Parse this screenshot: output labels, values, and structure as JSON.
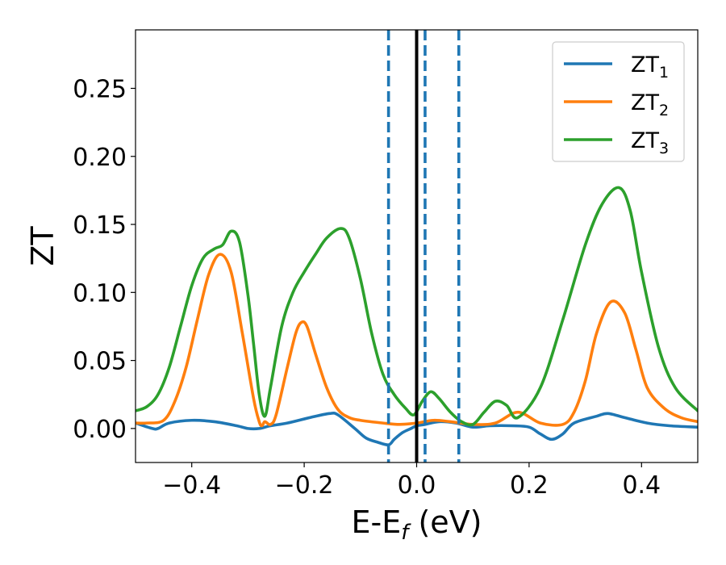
{
  "chart_data": {
    "type": "line",
    "xlabel_main": "E-E",
    "xlabel_sub": "f",
    "xlabel_unit": " (eV)",
    "ylabel": "ZT",
    "xlim": [
      -0.5,
      0.5
    ],
    "ylim": [
      -0.025,
      0.293
    ],
    "xticks": [
      -0.4,
      -0.2,
      0.0,
      0.2,
      0.4
    ],
    "xtick_labels": [
      "−0.4",
      "−0.2",
      "0.0",
      "0.2",
      "0.4"
    ],
    "yticks": [
      0.0,
      0.05,
      0.1,
      0.15,
      0.2,
      0.25
    ],
    "ytick_labels": [
      "0.00",
      "0.05",
      "0.10",
      "0.15",
      "0.20",
      "0.25"
    ],
    "legend_position": "top-right",
    "vlines": [
      {
        "x": 0.0,
        "color": "#000000",
        "style": "solid"
      },
      {
        "x": -0.05,
        "color": "#1f77b4",
        "style": "dashed"
      },
      {
        "x": 0.015,
        "color": "#1f77b4",
        "style": "dashed"
      },
      {
        "x": 0.075,
        "color": "#1f77b4",
        "style": "dashed"
      }
    ],
    "series": [
      {
        "name": "ZT",
        "sub": "1",
        "color": "#1f77b4",
        "x": [
          -0.5,
          -0.47,
          -0.46,
          -0.44,
          -0.4,
          -0.36,
          -0.32,
          -0.3,
          -0.28,
          -0.26,
          -0.23,
          -0.19,
          -0.155,
          -0.14,
          -0.11,
          -0.09,
          -0.07,
          -0.05,
          -0.04,
          -0.025,
          -0.01,
          0.0,
          0.015,
          0.04,
          0.07,
          0.1,
          0.13,
          0.17,
          0.2,
          0.22,
          0.24,
          0.26,
          0.28,
          0.32,
          0.34,
          0.37,
          0.41,
          0.45,
          0.5
        ],
        "y": [
          0.004,
          0.0,
          0.0,
          0.004,
          0.006,
          0.005,
          0.002,
          0.0,
          0.0,
          0.002,
          0.004,
          0.008,
          0.011,
          0.01,
          0.0,
          -0.007,
          -0.01,
          -0.012,
          -0.008,
          -0.003,
          0.0,
          0.002,
          0.003,
          0.005,
          0.004,
          0.001,
          0.002,
          0.002,
          0.001,
          -0.004,
          -0.008,
          -0.004,
          0.004,
          0.009,
          0.011,
          0.008,
          0.004,
          0.002,
          0.001
        ]
      },
      {
        "name": "ZT",
        "sub": "2",
        "color": "#ff7f0e",
        "x": [
          -0.5,
          -0.48,
          -0.45,
          -0.43,
          -0.41,
          -0.39,
          -0.37,
          -0.35,
          -0.33,
          -0.31,
          -0.29,
          -0.28,
          -0.275,
          -0.27,
          -0.26,
          -0.25,
          -0.23,
          -0.215,
          -0.205,
          -0.195,
          -0.18,
          -0.16,
          -0.14,
          -0.12,
          -0.1,
          -0.06,
          -0.03,
          0.0,
          0.03,
          0.06,
          0.1,
          0.14,
          0.18,
          0.22,
          0.26,
          0.28,
          0.3,
          0.32,
          0.345,
          0.37,
          0.39,
          0.41,
          0.44,
          0.47,
          0.5
        ],
        "y": [
          0.004,
          0.004,
          0.006,
          0.02,
          0.045,
          0.08,
          0.113,
          0.128,
          0.115,
          0.07,
          0.022,
          0.005,
          0.002,
          0.005,
          0.003,
          0.01,
          0.045,
          0.07,
          0.078,
          0.075,
          0.055,
          0.03,
          0.014,
          0.008,
          0.006,
          0.004,
          0.003,
          0.004,
          0.006,
          0.005,
          0.003,
          0.004,
          0.012,
          0.004,
          0.003,
          0.012,
          0.035,
          0.07,
          0.093,
          0.085,
          0.058,
          0.03,
          0.015,
          0.008,
          0.005
        ]
      },
      {
        "name": "ZT",
        "sub": "3",
        "color": "#2ca02c",
        "x": [
          -0.5,
          -0.48,
          -0.46,
          -0.44,
          -0.42,
          -0.4,
          -0.38,
          -0.36,
          -0.345,
          -0.33,
          -0.315,
          -0.3,
          -0.29,
          -0.28,
          -0.27,
          -0.26,
          -0.24,
          -0.22,
          -0.2,
          -0.18,
          -0.16,
          -0.135,
          -0.12,
          -0.1,
          -0.08,
          -0.06,
          -0.04,
          -0.02,
          -0.005,
          0.01,
          0.025,
          0.04,
          0.06,
          0.08,
          0.1,
          0.12,
          0.14,
          0.16,
          0.18,
          0.22,
          0.26,
          0.3,
          0.33,
          0.36,
          0.38,
          0.4,
          0.43,
          0.46,
          0.5
        ],
        "y": [
          0.013,
          0.016,
          0.025,
          0.045,
          0.075,
          0.105,
          0.125,
          0.132,
          0.135,
          0.145,
          0.137,
          0.098,
          0.062,
          0.025,
          0.009,
          0.03,
          0.075,
          0.1,
          0.115,
          0.128,
          0.14,
          0.147,
          0.14,
          0.11,
          0.07,
          0.04,
          0.025,
          0.015,
          0.01,
          0.02,
          0.027,
          0.022,
          0.012,
          0.005,
          0.003,
          0.012,
          0.02,
          0.017,
          0.008,
          0.03,
          0.08,
          0.135,
          0.165,
          0.177,
          0.16,
          0.115,
          0.06,
          0.03,
          0.013
        ]
      }
    ]
  }
}
